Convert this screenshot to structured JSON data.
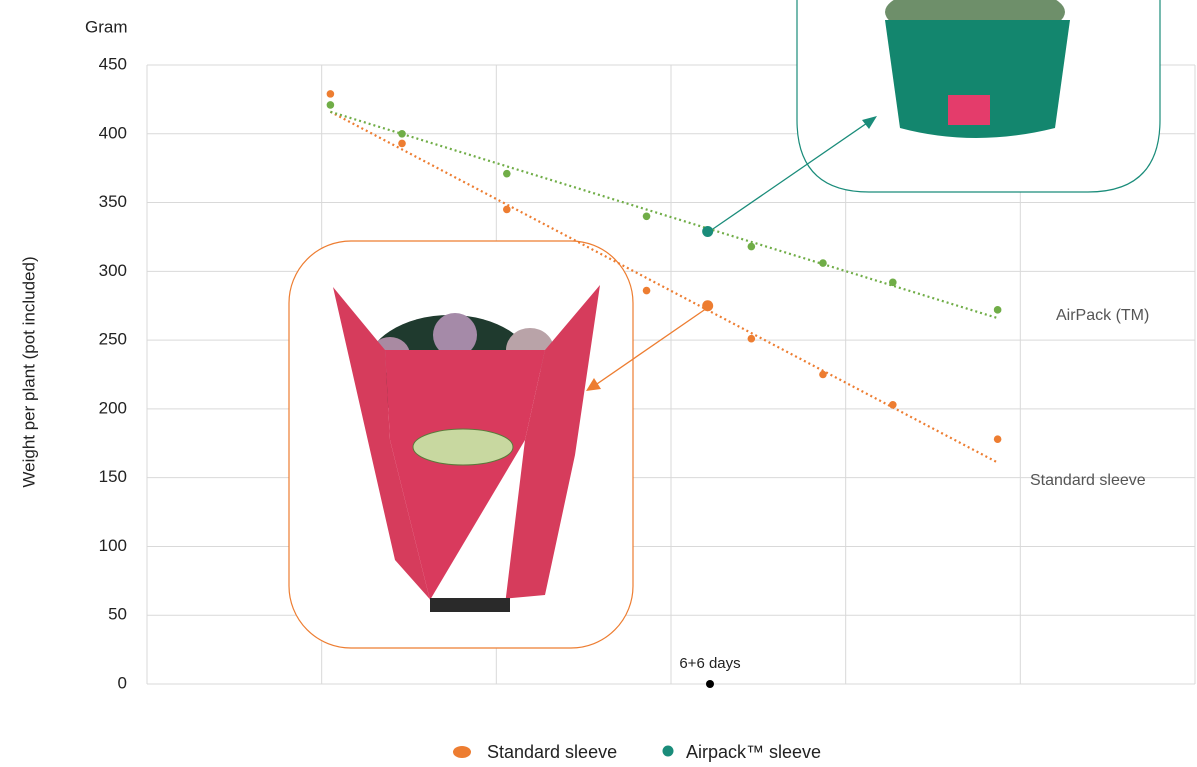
{
  "chart_data": {
    "type": "scatter",
    "y_unit_label": "Gram",
    "y_axis_label": "Weight per plant (pot included)",
    "xlim": [
      0,
      6
    ],
    "xticks": [
      0,
      1,
      2,
      3,
      4,
      5,
      6
    ],
    "ylim": [
      0,
      450
    ],
    "yticks": [
      0,
      50,
      100,
      150,
      200,
      250,
      300,
      350,
      400,
      450
    ],
    "grid": true,
    "series": [
      {
        "name": "Standard sleeve",
        "color": "#ed7d31",
        "point_color": "#ed7d31",
        "highlight": 4,
        "x": [
          1.05,
          1.46,
          2.06,
          2.86,
          3.21,
          3.46,
          3.87,
          4.27,
          4.87
        ],
        "values": [
          429,
          393,
          345,
          286,
          275,
          251,
          225,
          203,
          178
        ],
        "trend": {
          "x": [
            1.05,
            4.87
          ],
          "values": [
            416,
            161
          ]
        },
        "end_label": "Standard sleeve"
      },
      {
        "name": "Airpack™ sleeve",
        "color": "#1a8c7a",
        "point_color": "#70ad47",
        "highlight": 4,
        "x": [
          1.05,
          1.46,
          2.06,
          2.86,
          3.21,
          3.46,
          3.87,
          4.27,
          4.87
        ],
        "values": [
          421,
          400,
          371,
          340,
          329,
          318,
          306,
          292,
          272
        ],
        "trend": {
          "x": [
            1.05,
            4.87
          ],
          "values": [
            416,
            266
          ]
        },
        "end_label": "AirPack (TM)"
      }
    ],
    "annotation": "6+6 days"
  }
}
